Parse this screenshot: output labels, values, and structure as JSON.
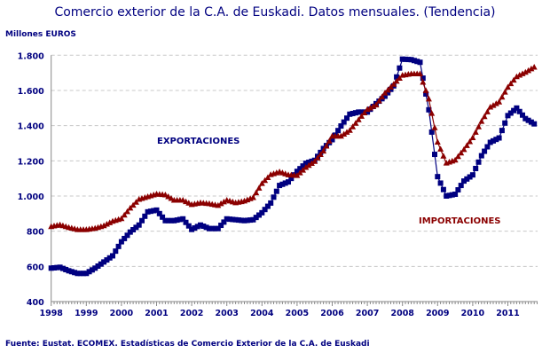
{
  "chart_data": {
    "type": "line",
    "title": "Comercio exterior de la C.A. de Euskadi. Datos mensuales. (Tendencia)",
    "ylabel": "Millones EUROS",
    "source": "Fuente: Eustat. ECOMEX. Estadísticas de Comercio Exterior de la C.A. de Euskadi",
    "ylim": [
      400,
      1800
    ],
    "yticks": [
      400,
      600,
      800,
      1000,
      1200,
      1400,
      1600,
      1800
    ],
    "ytick_labels": [
      "400",
      "600",
      "800",
      "1.000",
      "1.200",
      "1.400",
      "1.600",
      "1.800"
    ],
    "xlim": [
      1998,
      2011.85
    ],
    "xtick_labels": [
      "1998",
      "1999",
      "2000",
      "2001",
      "2002",
      "2003",
      "2004",
      "2005",
      "2006",
      "2007",
      "2008",
      "2009",
      "2010",
      "2011"
    ],
    "grid": "horizontal dashed",
    "x": [
      1998.0,
      1998.25,
      1998.5,
      1998.75,
      1999.0,
      1999.25,
      1999.5,
      1999.75,
      2000.0,
      2000.25,
      2000.5,
      2000.75,
      2001.0,
      2001.25,
      2001.5,
      2001.75,
      2002.0,
      2002.25,
      2002.5,
      2002.75,
      2003.0,
      2003.25,
      2003.5,
      2003.75,
      2004.0,
      2004.25,
      2004.5,
      2004.75,
      2005.0,
      2005.25,
      2005.5,
      2005.75,
      2006.0,
      2006.25,
      2006.5,
      2006.75,
      2007.0,
      2007.25,
      2007.5,
      2007.75,
      2008.0,
      2008.25,
      2008.5,
      2008.75,
      2009.0,
      2009.25,
      2009.5,
      2009.75,
      2010.0,
      2010.25,
      2010.5,
      2010.75,
      2011.0,
      2011.25,
      2011.5,
      2011.75
    ],
    "series": [
      {
        "name": "EXPORTACIONES",
        "color": "#000080",
        "marker": "square",
        "values": [
          590,
          595,
          575,
          560,
          560,
          590,
          625,
          660,
          740,
          795,
          835,
          910,
          920,
          860,
          860,
          870,
          810,
          835,
          815,
          815,
          870,
          865,
          860,
          865,
          905,
          960,
          1060,
          1080,
          1140,
          1186,
          1203,
          1270,
          1320,
          1398,
          1465,
          1477,
          1477,
          1525,
          1567,
          1626,
          1778,
          1775,
          1760,
          1490,
          1110,
          1000,
          1010,
          1085,
          1120,
          1229,
          1305,
          1330,
          1457,
          1500,
          1440,
          1410
        ]
      },
      {
        "name": "IMPORTACIONES",
        "color": "#8B0000",
        "marker": "triangle",
        "values": [
          825,
          835,
          820,
          808,
          808,
          815,
          830,
          855,
          870,
          930,
          980,
          995,
          1010,
          1005,
          975,
          975,
          950,
          960,
          955,
          945,
          975,
          960,
          970,
          990,
          1070,
          1120,
          1136,
          1119,
          1115,
          1161,
          1195,
          1254,
          1339,
          1339,
          1372,
          1432,
          1491,
          1516,
          1584,
          1634,
          1685,
          1693,
          1693,
          1550,
          1305,
          1186,
          1203,
          1263,
          1330,
          1423,
          1504,
          1533,
          1617,
          1677,
          1702,
          1731
        ]
      }
    ]
  }
}
